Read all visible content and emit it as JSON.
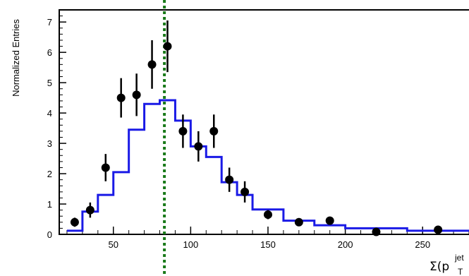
{
  "chart_data": {
    "type": "scatter",
    "title": "",
    "ylabel": "Normalized Entries",
    "xlabel": {
      "prefix": "Σ(p",
      "subscript": "T",
      "superscript": "jet"
    },
    "xlim": [
      15,
      280
    ],
    "ylim": [
      0,
      7.4
    ],
    "x_ticks": [
      50,
      100,
      150,
      200,
      250
    ],
    "y_ticks": [
      0,
      1,
      2,
      3,
      4,
      5,
      6,
      7
    ],
    "grid": false,
    "reference_line": {
      "x": 83,
      "color": "#1a7a1a",
      "style": "dotted"
    },
    "series": [
      {
        "type": "points",
        "color": "#000000",
        "points": [
          {
            "x": 25,
            "y": 0.4,
            "err": 0.15
          },
          {
            "x": 35,
            "y": 0.8,
            "err": 0.25
          },
          {
            "x": 45,
            "y": 2.2,
            "err": 0.45
          },
          {
            "x": 55,
            "y": 4.5,
            "err": 0.65
          },
          {
            "x": 65,
            "y": 4.6,
            "err": 0.7
          },
          {
            "x": 75,
            "y": 5.6,
            "err": 0.8
          },
          {
            "x": 85,
            "y": 6.2,
            "err": 0.85
          },
          {
            "x": 95,
            "y": 3.4,
            "err": 0.55
          },
          {
            "x": 105,
            "y": 2.9,
            "err": 0.5
          },
          {
            "x": 115,
            "y": 3.4,
            "err": 0.55
          },
          {
            "x": 125,
            "y": 1.8,
            "err": 0.4
          },
          {
            "x": 135,
            "y": 1.4,
            "err": 0.35
          },
          {
            "x": 150,
            "y": 0.65,
            "err": 0.15
          },
          {
            "x": 170,
            "y": 0.4,
            "err": 0.1
          },
          {
            "x": 190,
            "y": 0.45,
            "err": 0.1
          },
          {
            "x": 220,
            "y": 0.08,
            "err": 0.05
          },
          {
            "x": 260,
            "y": 0.15,
            "err": 0.05
          }
        ]
      },
      {
        "type": "step",
        "color": "#1a1ae6",
        "edges": [
          20,
          30,
          40,
          50,
          60,
          70,
          80,
          90,
          100,
          110,
          120,
          130,
          140,
          160,
          180,
          200,
          240,
          280
        ],
        "values": [
          0.12,
          0.75,
          1.3,
          2.05,
          3.45,
          4.3,
          4.42,
          3.75,
          2.9,
          2.55,
          1.72,
          1.3,
          0.82,
          0.45,
          0.3,
          0.2,
          0.12
        ]
      }
    ]
  }
}
